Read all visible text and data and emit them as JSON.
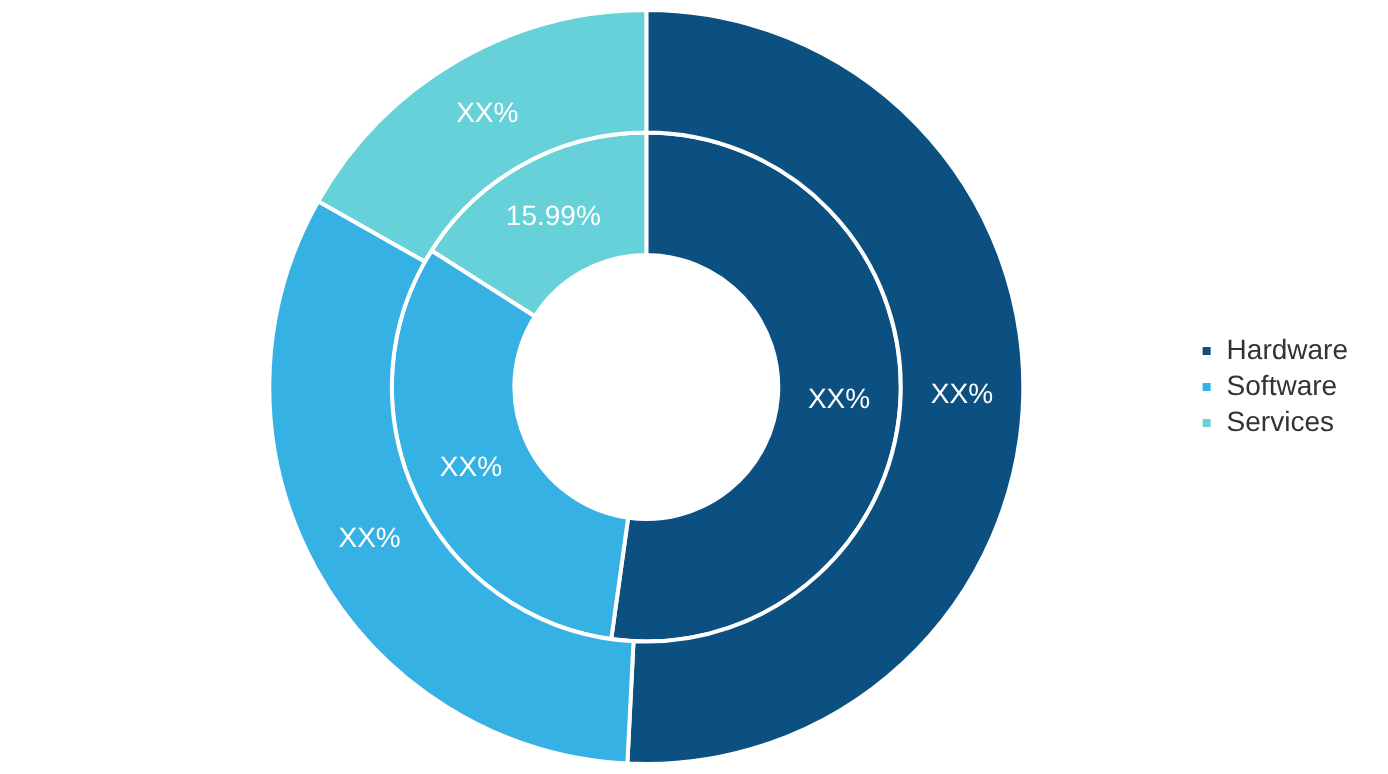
{
  "chart_data": {
    "type": "donut",
    "categories": [
      "Hardware",
      "Software",
      "Services"
    ],
    "colors": [
      "#0b5080",
      "#35b1e3",
      "#66d1d9"
    ],
    "legend": "right",
    "series": [
      {
        "values": [
          50.8,
          32.4,
          16.8
        ],
        "value_labels": [
          "XX%",
          "XX%",
          "XX%"
        ]
      },
      {
        "values": [
          52.2,
          31.81,
          15.99
        ],
        "value_labels": [
          "XX%",
          "XX%",
          "15.99%"
        ]
      }
    ]
  }
}
